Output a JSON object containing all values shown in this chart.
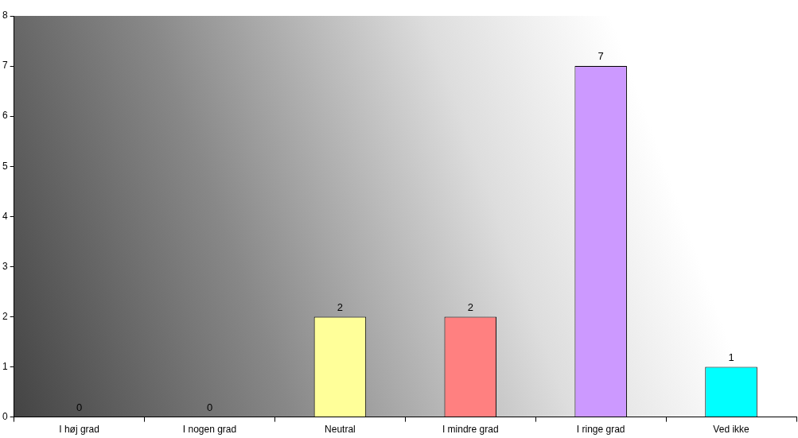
{
  "chart_data": {
    "type": "bar",
    "categories": [
      "I høj grad",
      "I nogen grad",
      "Neutral",
      "I mindre grad",
      "I ringe grad",
      "Ved ikke"
    ],
    "values": [
      0,
      0,
      2,
      2,
      7,
      1
    ],
    "colors": [
      "#9999ff",
      "#993366",
      "#ffff99",
      "#ff8080",
      "#cc99ff",
      "#00ffff"
    ],
    "ylim": [
      0,
      8
    ],
    "yticks": [
      0,
      1,
      2,
      3,
      4,
      5,
      6,
      7,
      8
    ],
    "grid": false,
    "legend": false,
    "data_labels": true
  }
}
